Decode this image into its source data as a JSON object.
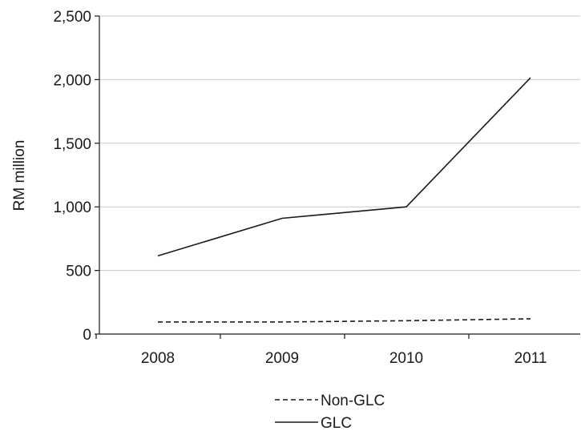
{
  "chart_data": {
    "type": "line",
    "title": "",
    "xlabel": "",
    "ylabel": "RM million",
    "categories": [
      "2008",
      "2009",
      "2010",
      "2011"
    ],
    "series": [
      {
        "name": "Non-GLC",
        "values": [
          95,
          95,
          105,
          120
        ],
        "color": "#1a1a1a",
        "dash": "dashed"
      },
      {
        "name": "GLC",
        "values": [
          615,
          910,
          1000,
          2015
        ],
        "color": "#1a1a1a",
        "dash": "solid"
      }
    ],
    "ylim": [
      0,
      2500
    ],
    "yticks": [
      "0",
      "500",
      "1,000",
      "1,500",
      "2,000",
      "2,500"
    ],
    "ytick_values": [
      0,
      500,
      1000,
      1500,
      2000,
      2500
    ],
    "grid": true,
    "legend_position": "bottom-center"
  }
}
